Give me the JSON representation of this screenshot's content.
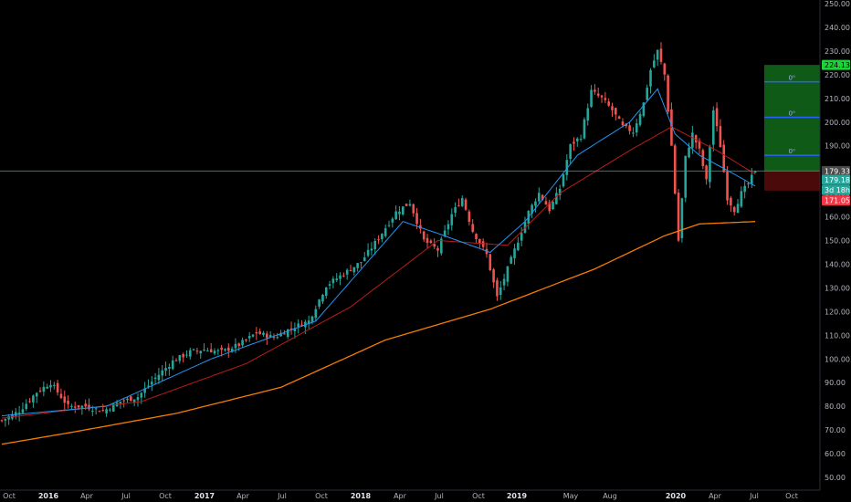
{
  "chart_data": {
    "type": "candlestick",
    "ylim": [
      50,
      250
    ],
    "price_axis_ticks": [
      "250.00",
      "240.00",
      "230.00",
      "220.00",
      "210.00",
      "200.00",
      "190.00",
      "180.00",
      "170.00",
      "160.00",
      "150.00",
      "140.00",
      "130.00",
      "120.00",
      "110.00",
      "100.00",
      "90.00",
      "80.00",
      "70.00",
      "60.00",
      "50.00"
    ],
    "time_axis_ticks": [
      {
        "label": "Oct",
        "strong": false
      },
      {
        "label": "2016",
        "strong": true
      },
      {
        "label": "Apr",
        "strong": false
      },
      {
        "label": "Jul",
        "strong": false
      },
      {
        "label": "Oct",
        "strong": false
      },
      {
        "label": "2017",
        "strong": true
      },
      {
        "label": "Apr",
        "strong": false
      },
      {
        "label": "Jul",
        "strong": false
      },
      {
        "label": "Oct",
        "strong": false
      },
      {
        "label": "2018",
        "strong": true
      },
      {
        "label": "Apr",
        "strong": false
      },
      {
        "label": "Jul",
        "strong": false
      },
      {
        "label": "Oct",
        "strong": false
      },
      {
        "label": "2019",
        "strong": true
      },
      {
        "label": "May",
        "strong": false
      },
      {
        "label": "Aug",
        "strong": false
      },
      {
        "label": "2020",
        "strong": true
      },
      {
        "label": "Apr",
        "strong": false
      },
      {
        "label": "Jul",
        "strong": false
      },
      {
        "label": "Oct",
        "strong": false
      }
    ],
    "price_waypoints": [
      [
        0,
        74
      ],
      [
        5,
        78
      ],
      [
        10,
        86
      ],
      [
        14,
        90
      ],
      [
        19,
        80
      ],
      [
        24,
        80
      ],
      [
        29,
        78
      ],
      [
        34,
        82
      ],
      [
        39,
        84
      ],
      [
        44,
        92
      ],
      [
        49,
        99
      ],
      [
        54,
        103
      ],
      [
        58,
        104
      ],
      [
        63,
        103
      ],
      [
        68,
        106
      ],
      [
        73,
        111
      ],
      [
        78,
        109
      ],
      [
        83,
        113
      ],
      [
        88,
        116
      ],
      [
        93,
        131
      ],
      [
        98,
        136
      ],
      [
        103,
        141
      ],
      [
        108,
        151
      ],
      [
        113,
        162
      ],
      [
        117,
        166
      ],
      [
        121,
        150
      ],
      [
        125,
        146
      ],
      [
        129,
        161
      ],
      [
        132,
        168
      ],
      [
        135,
        154
      ],
      [
        139,
        144
      ],
      [
        142,
        126
      ],
      [
        145,
        138
      ],
      [
        148,
        150
      ],
      [
        151,
        162
      ],
      [
        154,
        170
      ],
      [
        157,
        163
      ],
      [
        160,
        172
      ],
      [
        163,
        190
      ],
      [
        166,
        194
      ],
      [
        169,
        213
      ],
      [
        172,
        210
      ],
      [
        175,
        205
      ],
      [
        178,
        198
      ],
      [
        181,
        196
      ],
      [
        184,
        208
      ],
      [
        186,
        222
      ],
      [
        188,
        230
      ],
      [
        190,
        220
      ],
      [
        192,
        190
      ],
      [
        193,
        170
      ],
      [
        194,
        150
      ],
      [
        196,
        185
      ],
      [
        198,
        195
      ],
      [
        200,
        188
      ],
      [
        202,
        175
      ],
      [
        204,
        205
      ],
      [
        206,
        190
      ],
      [
        208,
        168
      ],
      [
        210,
        163
      ],
      [
        212,
        170
      ],
      [
        214,
        174
      ],
      [
        216,
        179.33
      ]
    ],
    "ema_fast_waypoints": [
      [
        0,
        76
      ],
      [
        30,
        80
      ],
      [
        60,
        100
      ],
      [
        90,
        116
      ],
      [
        115,
        158
      ],
      [
        125,
        153
      ],
      [
        140,
        145
      ],
      [
        150,
        158
      ],
      [
        165,
        186
      ],
      [
        180,
        200
      ],
      [
        188,
        214
      ],
      [
        193,
        195
      ],
      [
        200,
        186
      ],
      [
        210,
        178
      ],
      [
        216,
        173
      ]
    ],
    "ema_mid_waypoints": [
      [
        0,
        75
      ],
      [
        40,
        82
      ],
      [
        70,
        98
      ],
      [
        100,
        122
      ],
      [
        125,
        150
      ],
      [
        145,
        148
      ],
      [
        160,
        170
      ],
      [
        180,
        188
      ],
      [
        192,
        198
      ],
      [
        205,
        188
      ],
      [
        216,
        178
      ]
    ],
    "ma_slow_waypoints": [
      [
        0,
        64
      ],
      [
        20,
        69
      ],
      [
        50,
        77
      ],
      [
        80,
        88
      ],
      [
        110,
        108
      ],
      [
        140,
        121
      ],
      [
        170,
        138
      ],
      [
        190,
        152
      ],
      [
        200,
        157
      ],
      [
        216,
        158
      ]
    ],
    "position": {
      "target": 224.13,
      "entry": 179.33,
      "stop": 171.05,
      "levels": [
        217,
        202,
        186
      ],
      "level_text": "0⁰"
    },
    "last_price": 179.33,
    "price_tags": [
      {
        "label": "224.13",
        "value": 224.13,
        "bg": "#1fd13b",
        "fg": "#000000"
      },
      {
        "label": "179.33",
        "value": 179.33,
        "bg": "#4a4a4a",
        "fg": "#ffffff"
      },
      {
        "label": "179.18",
        "value": 175.6,
        "bg": "#26a69a",
        "fg": "#ffffff"
      },
      {
        "label": "3d 18h",
        "value": 171.3,
        "bg": "#26a69a",
        "fg": "#ffffff"
      },
      {
        "label": "171.05",
        "value": 166.9,
        "bg": "#f23645",
        "fg": "#ffffff"
      }
    ],
    "colors": {
      "up": "#26a69a",
      "down": "#ef5350",
      "ema_fast": "#2196f3",
      "ema_mid": "#b71c1c",
      "ma_slow": "#f57c00",
      "profit_zone": "#0f5a16",
      "loss_zone": "#4a0a0a",
      "last_line": "#26a69a",
      "level_line": "#2962ff"
    }
  }
}
